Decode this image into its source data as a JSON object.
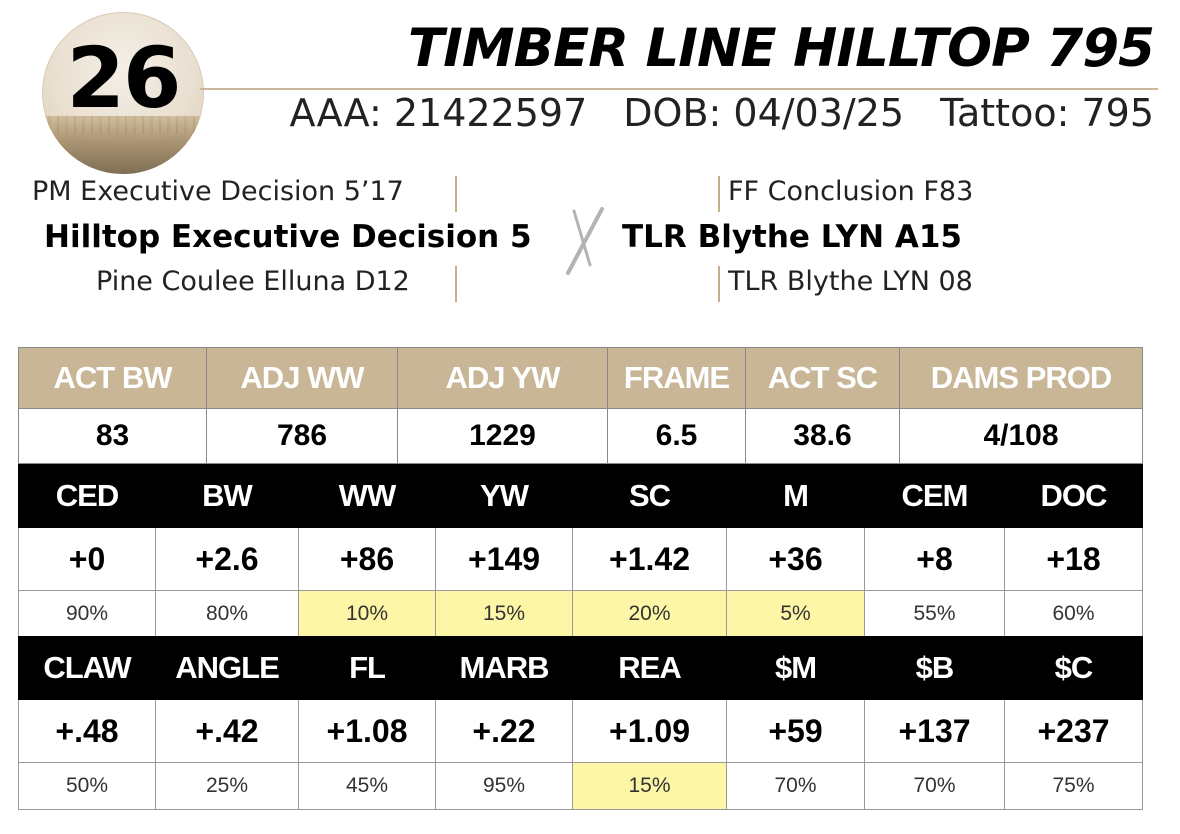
{
  "lot_number": "26",
  "animal_name": "TIMBER LINE HILLTOP 795",
  "ids": {
    "aaa": "AAA: 21422597",
    "dob": "DOB: 04/03/25",
    "tattoo": "Tattoo: 795"
  },
  "pedigree": {
    "sire_sire": "PM Executive Decision 5’17",
    "sire": "Hilltop Executive Decision 5",
    "sire_dam": "Pine Coulee Elluna D12",
    "dam_sire": "FF Conclusion F83",
    "dam": "TLR Blythe LYN A15",
    "dam_dam": "TLR Blythe LYN 08"
  },
  "performance": {
    "headers": [
      "ACT BW",
      "ADJ WW",
      "ADJ YW",
      "FRAME",
      "ACT SC",
      "DAMS PROD"
    ],
    "values": [
      "83",
      "786",
      "1229",
      "6.5",
      "38.6",
      "4/108"
    ]
  },
  "epd_row1": {
    "headers": [
      "CED",
      "BW",
      "WW",
      "YW",
      "SC",
      "M",
      "CEM",
      "DOC"
    ],
    "values": [
      "+0",
      "+2.6",
      "+86",
      "+149",
      "+1.42",
      "+36",
      "+8",
      "+18"
    ],
    "percentiles": [
      "90%",
      "80%",
      "10%",
      "15%",
      "20%",
      "5%",
      "55%",
      "60%"
    ],
    "highlighted": [
      false,
      false,
      true,
      true,
      true,
      true,
      false,
      false
    ]
  },
  "epd_row2": {
    "headers": [
      "CLAW",
      "ANGLE",
      "FL",
      "MARB",
      "REA",
      "$M",
      "$B",
      "$C"
    ],
    "values": [
      "+.48",
      "+.42",
      "+1.08",
      "+.22",
      "+1.09",
      "+59",
      "+137",
      "+237"
    ],
    "percentiles": [
      "50%",
      "25%",
      "45%",
      "95%",
      "15%",
      "70%",
      "70%",
      "75%"
    ],
    "highlighted": [
      false,
      false,
      false,
      false,
      true,
      false,
      false,
      false
    ]
  },
  "colors": {
    "header_tan": "#c9b696",
    "highlight_yellow": "#fdf6a6",
    "epd_header_black": "#000000"
  }
}
